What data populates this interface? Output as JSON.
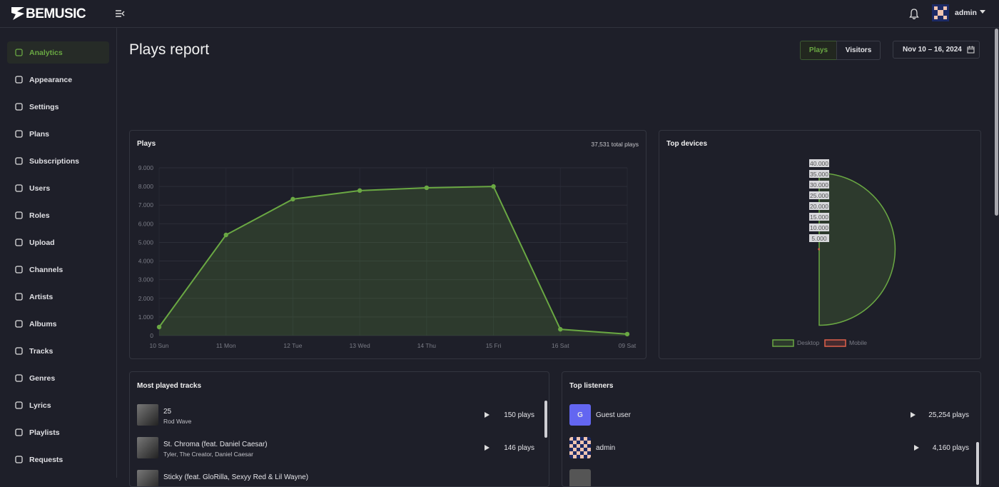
{
  "header": {
    "brand": "BEMUSIC",
    "user": "admin"
  },
  "nav": {
    "items": [
      "Analytics",
      "Appearance",
      "Settings",
      "Plans",
      "Subscriptions",
      "Users",
      "Roles",
      "Upload",
      "Channels",
      "Artists",
      "Albums",
      "Tracks",
      "Genres",
      "Lyrics",
      "Playlists",
      "Requests"
    ]
  },
  "page": {
    "title": "Plays report",
    "tabs": [
      "Plays",
      "Visitors"
    ],
    "date_range": "Nov 10 – 16, 2024"
  },
  "chart_data": [
    {
      "type": "area",
      "title": "Plays",
      "subtitle": "37,531 total plays",
      "categories": [
        "10 Sun",
        "11 Mon",
        "12 Tue",
        "13 Wed",
        "14 Thu",
        "15 Fri",
        "16 Sat",
        "09 Sat"
      ],
      "values": [
        460,
        5400,
        7320,
        7780,
        7930,
        8000,
        340,
        80
      ],
      "color": "#6aa843",
      "ylim": [
        0,
        9000
      ],
      "yticks": [
        0,
        {
          "value": 1000,
          "label": "1.000"
        },
        {
          "value": 2000,
          "label": "2.000"
        },
        {
          "value": 3000,
          "label": "3.000"
        },
        {
          "value": 4000,
          "label": "4.000"
        },
        {
          "value": 5000,
          "label": "5.000"
        },
        {
          "value": 6000,
          "label": "6.000"
        },
        {
          "value": 7000,
          "label": "7.000"
        },
        {
          "value": 8000,
          "label": "8.000"
        },
        {
          "value": 9000,
          "label": "9.000"
        }
      ],
      "grid": true
    },
    {
      "type": "polarArea",
      "title": "Top devices",
      "categories": [
        "Desktop",
        "Mobile"
      ],
      "values": [
        35500,
        300
      ],
      "colors": [
        "#6aa843",
        "#e0604a"
      ],
      "rlim": [
        0,
        40000
      ],
      "rticks": [
        {
          "value": 5000,
          "label": "5.000"
        },
        {
          "value": 10000,
          "label": "10.000"
        },
        {
          "value": 15000,
          "label": "15.000"
        },
        {
          "value": 20000,
          "label": "20.000"
        },
        {
          "value": 25000,
          "label": "25.000"
        },
        {
          "value": 30000,
          "label": "30.000"
        },
        {
          "value": 35000,
          "label": "35.000"
        },
        {
          "value": 40000,
          "label": "40.000"
        }
      ]
    }
  ],
  "tracks": {
    "title": "Most played tracks",
    "items": [
      {
        "title": "25",
        "artists": "Rod Wave",
        "plays": "150 plays"
      },
      {
        "title": "St. Chroma (feat. Daniel Caesar)",
        "artists": "Tyler, The Creator, Daniel Caesar",
        "plays": "146 plays"
      },
      {
        "title": "Sticky (feat. GloRilla, Sexyy Red & Lil Wayne)"
      }
    ]
  },
  "listeners": {
    "title": "Top listeners",
    "items": [
      {
        "initial": "G",
        "name": "Guest user",
        "plays": "25,254 plays"
      },
      {
        "name": "admin",
        "plays": "4,160 plays"
      }
    ]
  }
}
